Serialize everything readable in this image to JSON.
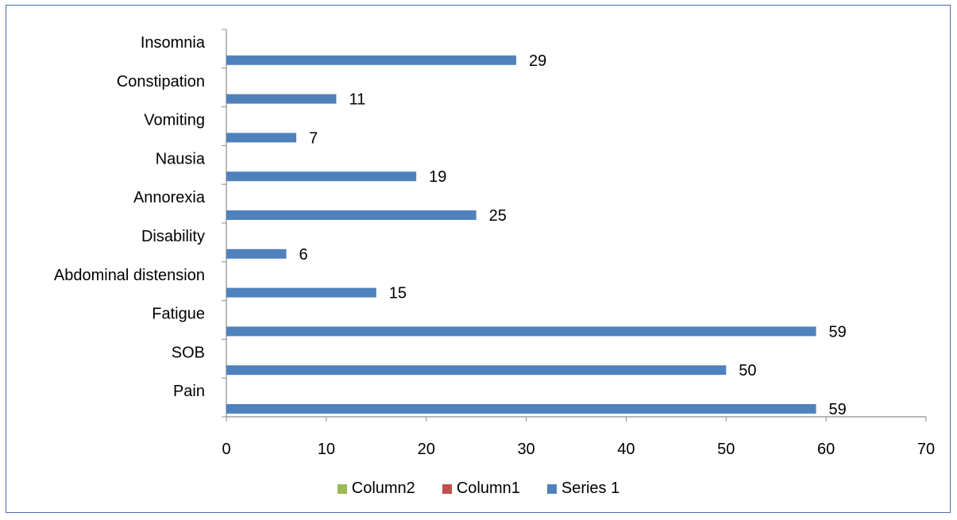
{
  "chart_data": {
    "type": "bar",
    "orientation": "horizontal",
    "categories": [
      "Pain",
      "SOB",
      "Fatigue",
      "Abdominal distension",
      "Disability",
      "Annorexia",
      "Nausia",
      "Vomiting",
      "Constipation",
      "Insomnia"
    ],
    "series": [
      {
        "name": "Column2",
        "color": "#9bbb59",
        "values": [
          null,
          null,
          null,
          null,
          null,
          null,
          null,
          null,
          null,
          null
        ]
      },
      {
        "name": "Column1",
        "color": "#c0504d",
        "values": [
          null,
          null,
          null,
          null,
          null,
          null,
          null,
          null,
          null,
          null
        ]
      },
      {
        "name": "Series 1",
        "color": "#4f81bd",
        "values": [
          59,
          50,
          59,
          15,
          6,
          25,
          19,
          7,
          11,
          29
        ]
      }
    ],
    "xlim": [
      0,
      70
    ],
    "x_ticks": [
      "0",
      "10",
      "20",
      "30",
      "40",
      "50",
      "60",
      "70"
    ],
    "title": "",
    "xlabel": "",
    "ylabel": "",
    "grid": false,
    "legend_position": "bottom",
    "data_labels": true
  }
}
